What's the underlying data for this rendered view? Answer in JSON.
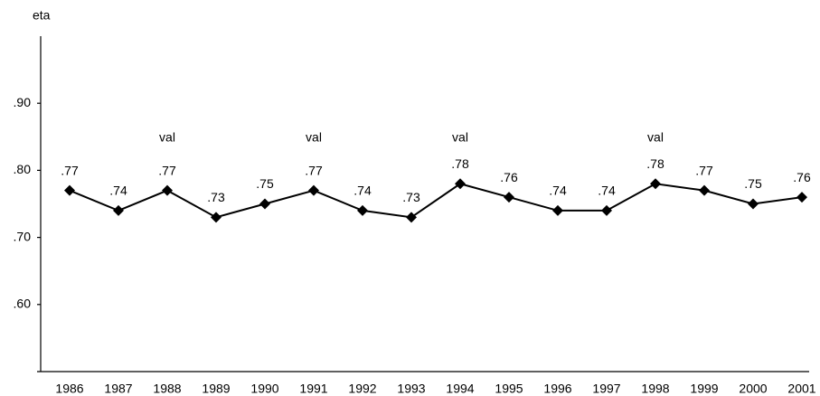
{
  "chart_data": {
    "type": "line",
    "y_axis_label": "eta",
    "categories": [
      "1986",
      "1987",
      "1988",
      "1989",
      "1990",
      "1991",
      "1992",
      "1993",
      "1994",
      "1995",
      "1996",
      "1997",
      "1998",
      "1999",
      "2000",
      "2001"
    ],
    "values": [
      0.77,
      0.74,
      0.77,
      0.73,
      0.75,
      0.77,
      0.74,
      0.73,
      0.78,
      0.76,
      0.74,
      0.74,
      0.78,
      0.77,
      0.75,
      0.76
    ],
    "value_labels": [
      ".77",
      ".74",
      ".77",
      ".73",
      ".75",
      ".77",
      ".74",
      ".73",
      ".78",
      ".76",
      ".74",
      ".74",
      ".78",
      ".77",
      ".75",
      ".76"
    ],
    "color": "#000000",
    "ylim": [
      0.5,
      1.0
    ],
    "yticks": [
      {
        "value": 0.6,
        "label": ".60"
      },
      {
        "value": 0.7,
        "label": ".70"
      },
      {
        "value": 0.8,
        "label": ".80"
      },
      {
        "value": 0.9,
        "label": ".90"
      }
    ],
    "annotations": [
      {
        "text": "val",
        "category": "1988"
      },
      {
        "text": "val",
        "category": "1991"
      },
      {
        "text": "val",
        "category": "1994"
      },
      {
        "text": "val",
        "category": "1998"
      }
    ]
  }
}
